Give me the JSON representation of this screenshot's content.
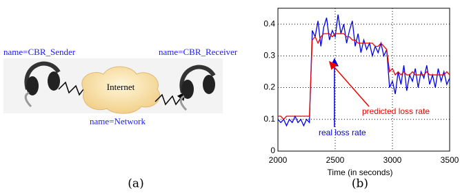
{
  "diagram": {
    "sender": "name=CBR_Sender",
    "receiver": "name=CBR_Receiver",
    "cloud": "Internet",
    "network": "name=Network",
    "caption": "(a)"
  },
  "chart_data": {
    "type": "line",
    "caption": "(b)",
    "xlabel": "Time (in seconds)",
    "xlim": [
      2000,
      3500
    ],
    "xticks": [
      2000,
      2500,
      3000,
      3500
    ],
    "ylim": [
      0,
      0.45
    ],
    "yticks": [
      0,
      0.1,
      0.2,
      0.3,
      0.4
    ],
    "grid": true,
    "x": [
      2000,
      2025,
      2050,
      2075,
      2100,
      2125,
      2150,
      2175,
      2200,
      2225,
      2250,
      2275,
      2300,
      2325,
      2350,
      2375,
      2400,
      2425,
      2450,
      2475,
      2500,
      2525,
      2550,
      2575,
      2600,
      2625,
      2650,
      2675,
      2700,
      2725,
      2750,
      2775,
      2800,
      2825,
      2850,
      2875,
      2900,
      2925,
      2950,
      2975,
      3000,
      3025,
      3050,
      3075,
      3100,
      3125,
      3150,
      3175,
      3200,
      3225,
      3250,
      3275,
      3300,
      3325,
      3350,
      3375,
      3400,
      3425,
      3450,
      3475,
      3500
    ],
    "series": [
      {
        "name": "real loss rate",
        "color": "#0000ee",
        "values": [
          0.1,
          0.09,
          0.1,
          0.08,
          0.1,
          0.09,
          0.11,
          0.09,
          0.1,
          0.08,
          0.1,
          0.09,
          0.38,
          0.36,
          0.41,
          0.33,
          0.39,
          0.42,
          0.35,
          0.38,
          0.36,
          0.43,
          0.37,
          0.4,
          0.34,
          0.38,
          0.41,
          0.33,
          0.37,
          0.31,
          0.35,
          0.32,
          0.34,
          0.3,
          0.33,
          0.31,
          0.34,
          0.3,
          0.32,
          0.2,
          0.22,
          0.18,
          0.25,
          0.21,
          0.27,
          0.19,
          0.24,
          0.22,
          0.26,
          0.2,
          0.25,
          0.23,
          0.27,
          0.21,
          0.24,
          0.2,
          0.26,
          0.22,
          0.25,
          0.21,
          0.23
        ]
      },
      {
        "name": "predicted loss rate",
        "color": "#ee0000",
        "values": [
          0.11,
          0.11,
          0.1,
          0.11,
          0.11,
          0.11,
          0.11,
          0.11,
          0.11,
          0.11,
          0.11,
          0.11,
          0.35,
          0.36,
          0.34,
          0.36,
          0.37,
          0.37,
          0.37,
          0.36,
          0.37,
          0.37,
          0.37,
          0.37,
          0.36,
          0.36,
          0.35,
          0.35,
          0.34,
          0.34,
          0.34,
          0.34,
          0.34,
          0.34,
          0.33,
          0.33,
          0.34,
          0.33,
          0.32,
          0.25,
          0.26,
          0.24,
          0.25,
          0.24,
          0.25,
          0.24,
          0.24,
          0.25,
          0.24,
          0.24,
          0.24,
          0.24,
          0.25,
          0.24,
          0.24,
          0.24,
          0.24,
          0.24,
          0.24,
          0.25,
          0.24
        ]
      }
    ]
  }
}
